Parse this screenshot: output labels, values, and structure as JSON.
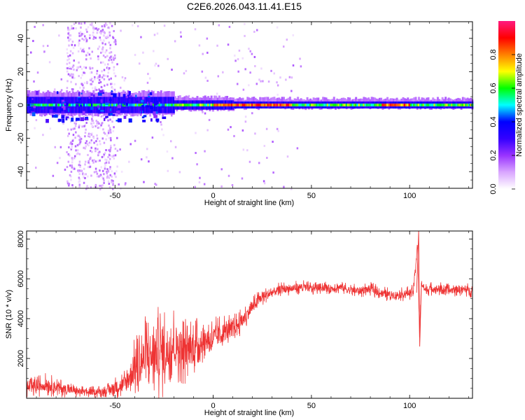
{
  "title": "C2E6.2026.043.11.41.E15",
  "chart_data": [
    {
      "type": "heatmap",
      "title": "C2E6.2026.043.11.41.E15",
      "xlabel": "Height of straight line (km)",
      "ylabel": "Frequency (Hz)",
      "xlim": [
        -95,
        132
      ],
      "ylim": [
        -50,
        50
      ],
      "xticks": [
        -50,
        0,
        50,
        100
      ],
      "xtick_labels": [
        "-50",
        "0",
        "50",
        "100"
      ],
      "yticks": [
        -40,
        -20,
        0,
        20,
        40
      ],
      "ytick_labels": [
        "-40",
        "-20",
        "0",
        "20",
        "40"
      ],
      "colorbar": {
        "label": "Normalized spectral amplitude",
        "range": [
          0,
          1
        ],
        "ticks": [
          0.0,
          0.2,
          0.4,
          0.6,
          0.8
        ],
        "tick_labels": [
          "0.0",
          "0.2",
          "0.4",
          "0.6",
          "0.8"
        ],
        "colormap": [
          "#ffffff",
          "#d9a6ff",
          "#9933ff",
          "#3300ff",
          "#0000ff",
          "#00ffff",
          "#00ff00",
          "#ffff00",
          "#ff8000",
          "#ff0000",
          "#ff1a80"
        ]
      },
      "band_center_hz": 0,
      "noise_region_x": [
        -75,
        -50
      ]
    },
    {
      "type": "line",
      "xlabel": "Height of straight line (km)",
      "ylabel": "SNR (10 * v/v)",
      "xlim": [
        -95,
        132
      ],
      "ylim": [
        0,
        8400
      ],
      "xticks": [
        -50,
        0,
        50,
        100
      ],
      "xtick_labels": [
        "-50",
        "0",
        "50",
        "100"
      ],
      "yticks": [
        2000,
        4000,
        6000,
        8000
      ],
      "ytick_labels": [
        "2000",
        "4000",
        "6000",
        "8000"
      ],
      "color": "#ee3333",
      "series": [
        {
          "name": "SNR",
          "x": [
            -95,
            -85,
            -75,
            -65,
            -55,
            -45,
            -40,
            -35,
            -30,
            -25,
            -20,
            -15,
            -10,
            -5,
            0,
            5,
            10,
            15,
            20,
            25,
            30,
            35,
            40,
            45,
            50,
            55,
            60,
            65,
            70,
            75,
            80,
            85,
            90,
            95,
            100,
            102,
            104,
            105,
            106,
            108,
            110,
            115,
            120,
            125,
            132
          ],
          "y": [
            500,
            700,
            450,
            300,
            350,
            700,
            1500,
            2000,
            2300,
            2300,
            2800,
            2400,
            2600,
            2900,
            3000,
            3300,
            3500,
            3900,
            4600,
            5100,
            5300,
            5500,
            5500,
            5600,
            5500,
            5600,
            5500,
            5600,
            5400,
            5400,
            5500,
            5300,
            5200,
            5200,
            5300,
            5400,
            7800,
            3200,
            5800,
            5400,
            5500,
            5500,
            5400,
            5500,
            5400
          ],
          "y_spread": [
            400,
            500,
            350,
            250,
            250,
            700,
            1300,
            1800,
            2000,
            2000,
            1600,
            1500,
            1300,
            900,
            900,
            800,
            600,
            550,
            450,
            400,
            350,
            300,
            300,
            300,
            300,
            300,
            300,
            300,
            300,
            300,
            300,
            300,
            300,
            300,
            300,
            300,
            300,
            300,
            300,
            300,
            300,
            300,
            300,
            300,
            300
          ]
        }
      ]
    }
  ]
}
